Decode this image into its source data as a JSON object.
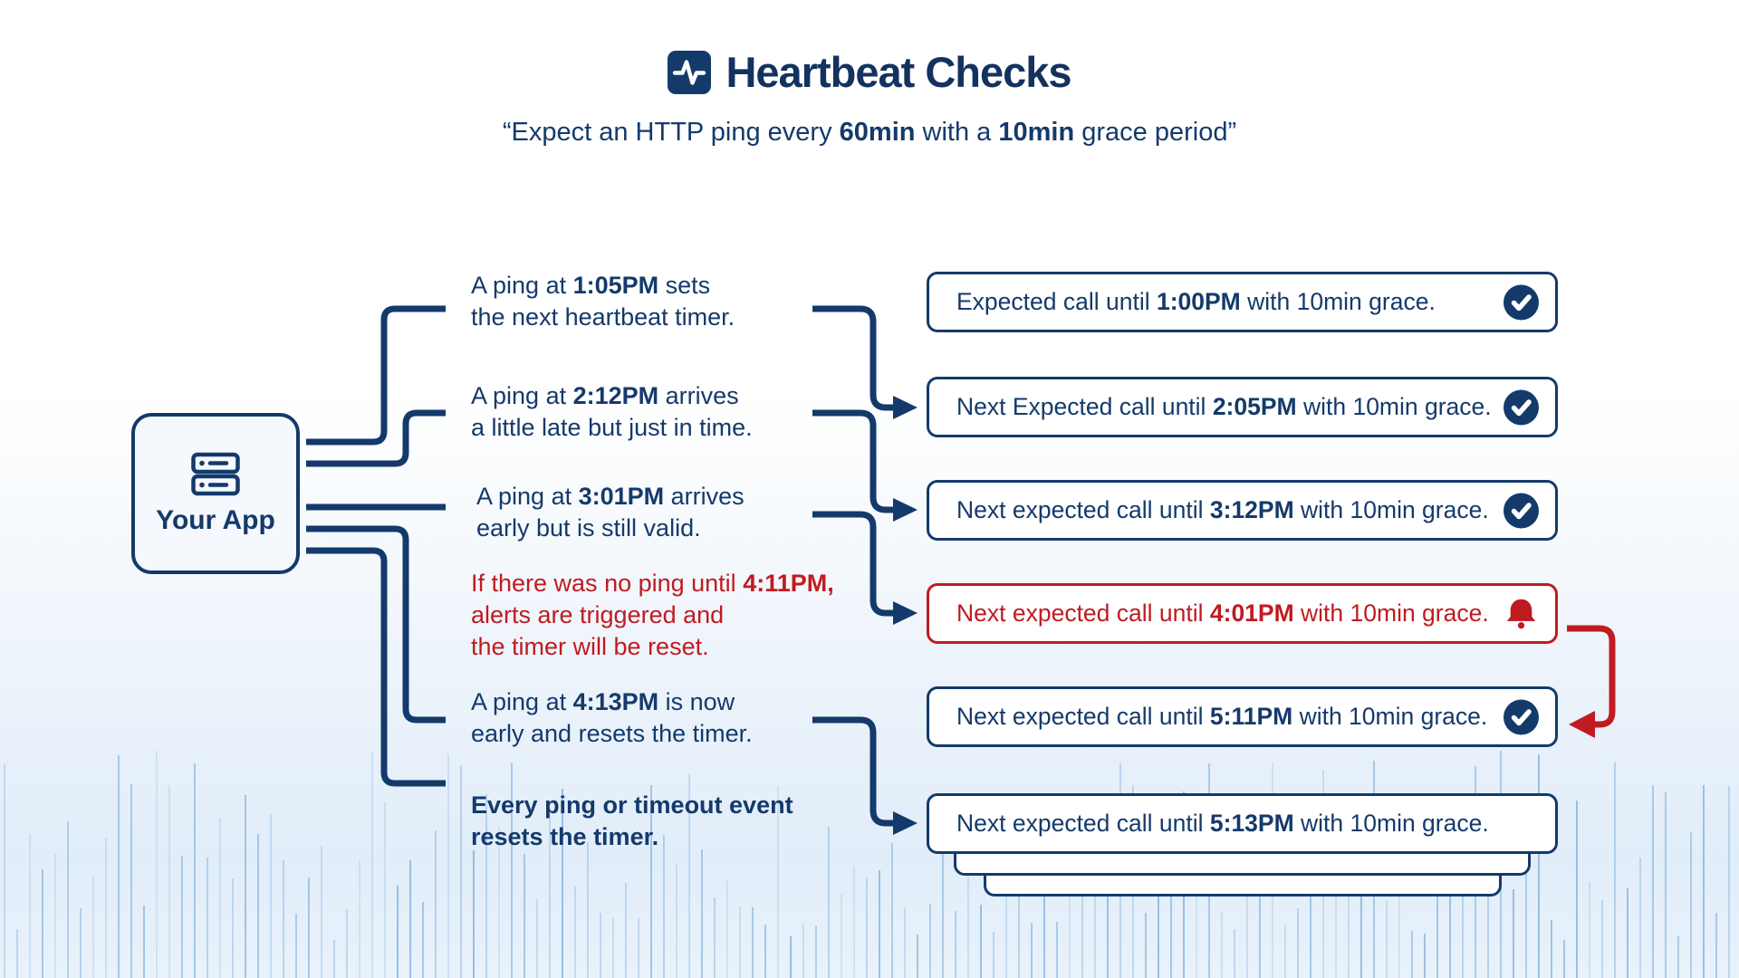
{
  "colors": {
    "navy": "#143a6b",
    "red": "#c01b21",
    "app_fill": "#f5f8fc",
    "box_fill": "#ffffff",
    "wave_blue": "#6ea5d9"
  },
  "header": {
    "title": "Heartbeat Checks",
    "title_icon": "activity-pulse-icon",
    "subtitle_segments": [
      {
        "t": "“Expect an HTTP ping every "
      },
      {
        "t": "60min",
        "b": true
      },
      {
        "t": " with a "
      },
      {
        "t": "10min",
        "b": true
      },
      {
        "t": " grace period”"
      }
    ]
  },
  "app_node": {
    "label": "Your App",
    "icon": "server-icon"
  },
  "annotations": [
    {
      "id": "ping-1",
      "tone": "navy",
      "segments": [
        {
          "t": "A ping at "
        },
        {
          "t": "1:05PM",
          "b": true
        },
        {
          "t": " sets\nthe next heartbeat timer."
        }
      ]
    },
    {
      "id": "ping-2",
      "tone": "navy",
      "segments": [
        {
          "t": "A ping at "
        },
        {
          "t": "2:12PM",
          "b": true
        },
        {
          "t": " arrives\na little late but just in time."
        }
      ]
    },
    {
      "id": "ping-3",
      "tone": "navy",
      "segments": [
        {
          "t": "A ping at "
        },
        {
          "t": "3:01PM",
          "b": true
        },
        {
          "t": " arrives\nearly but is still valid."
        }
      ]
    },
    {
      "id": "timeout",
      "tone": "red",
      "segments": [
        {
          "t": "If there was no ping until "
        },
        {
          "t": "4:11PM,",
          "b": true
        },
        {
          "t": "\nalerts are triggered and\nthe timer will be reset."
        }
      ]
    },
    {
      "id": "ping-4",
      "tone": "navy",
      "segments": [
        {
          "t": "A ping at "
        },
        {
          "t": "4:13PM",
          "b": true
        },
        {
          "t": " is now\nearly and resets the timer."
        }
      ]
    },
    {
      "id": "summary",
      "tone": "bold",
      "segments": [
        {
          "t": "Every ping or timeout event\nresets the timer.",
          "b": true
        }
      ]
    }
  ],
  "status_boxes": [
    {
      "tone": "ok",
      "icon": "check-circle-icon",
      "segments": [
        {
          "t": "Expected call until "
        },
        {
          "t": "1:00PM",
          "b": true
        },
        {
          "t": " with 10min grace."
        }
      ]
    },
    {
      "tone": "ok",
      "icon": "check-circle-icon",
      "segments": [
        {
          "t": "Next Expected call until "
        },
        {
          "t": "2:05PM",
          "b": true
        },
        {
          "t": " with 10min grace."
        }
      ]
    },
    {
      "tone": "ok",
      "icon": "check-circle-icon",
      "segments": [
        {
          "t": "Next expected call until "
        },
        {
          "t": "3:12PM",
          "b": true
        },
        {
          "t": " with 10min grace."
        }
      ]
    },
    {
      "tone": "alert",
      "icon": "bell-icon",
      "segments": [
        {
          "t": "Next expected call until "
        },
        {
          "t": "4:01PM",
          "b": true
        },
        {
          "t": " with 10min grace."
        }
      ]
    },
    {
      "tone": "ok",
      "icon": "check-circle-icon",
      "segments": [
        {
          "t": "Next expected call until "
        },
        {
          "t": "5:11PM",
          "b": true
        },
        {
          "t": " with 10min grace."
        }
      ]
    },
    {
      "tone": "ok",
      "icon": null,
      "segments": [
        {
          "t": "Next expected call until "
        },
        {
          "t": "5:13PM",
          "b": true
        },
        {
          "t": " with 10min grace."
        }
      ]
    }
  ]
}
